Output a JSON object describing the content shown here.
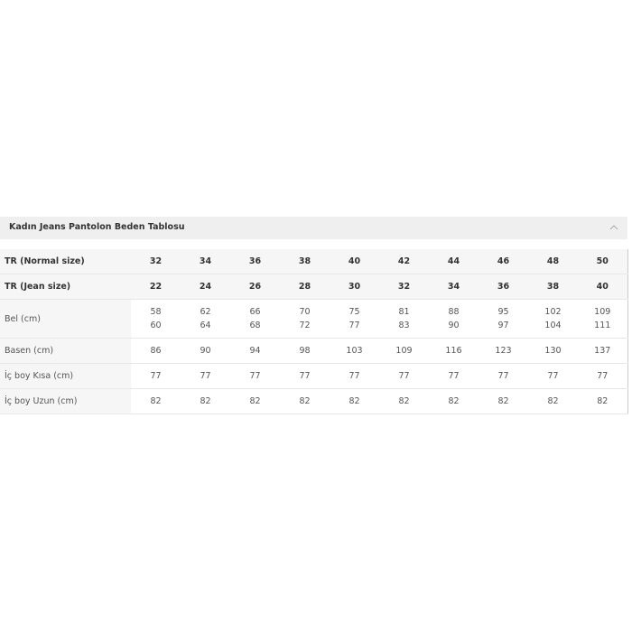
{
  "title": "Kadın Jeans Pantolon Beden Tablosu",
  "collapse_icon": "chevron-up-icon",
  "rows": [
    {
      "label": "TR (Normal size)",
      "values": [
        "32",
        "34",
        "36",
        "38",
        "40",
        "42",
        "44",
        "46",
        "48",
        "50"
      ]
    },
    {
      "label": "TR (Jean size)",
      "values": [
        "22",
        "24",
        "26",
        "28",
        "30",
        "32",
        "34",
        "36",
        "38",
        "40"
      ]
    },
    {
      "label": "Bel (cm)",
      "values": [
        [
          "58",
          "60"
        ],
        [
          "62",
          "64"
        ],
        [
          "66",
          "68"
        ],
        [
          "70",
          "72"
        ],
        [
          "75",
          "77"
        ],
        [
          "81",
          "83"
        ],
        [
          "88",
          "90"
        ],
        [
          "95",
          "97"
        ],
        [
          "102",
          "104"
        ],
        [
          "109",
          "111"
        ]
      ]
    },
    {
      "label": "Basen (cm)",
      "values": [
        "86",
        "90",
        "94",
        "98",
        "103",
        "109",
        "116",
        "123",
        "130",
        "137"
      ]
    },
    {
      "label": "İç boy Kısa (cm)",
      "values": [
        "77",
        "77",
        "77",
        "77",
        "77",
        "77",
        "77",
        "77",
        "77",
        "77"
      ]
    },
    {
      "label": "İç boy Uzun (cm)",
      "values": [
        "82",
        "82",
        "82",
        "82",
        "82",
        "82",
        "82",
        "82",
        "82",
        "82"
      ]
    }
  ]
}
